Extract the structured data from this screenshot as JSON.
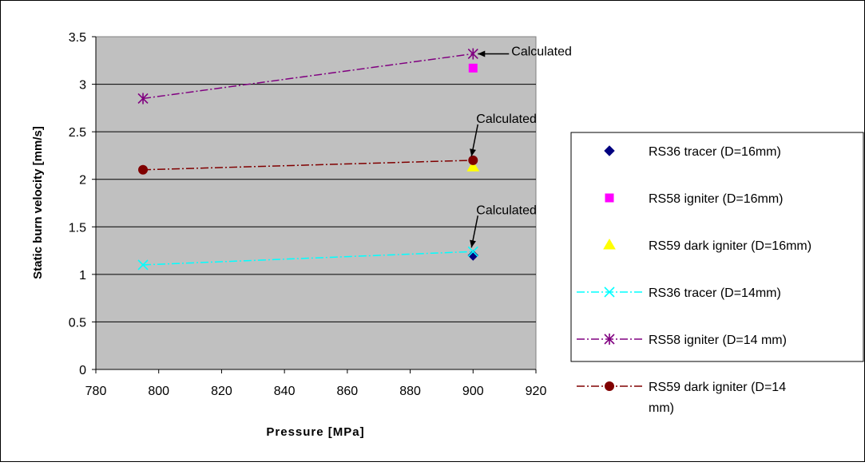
{
  "chart_data": {
    "type": "scatter",
    "title": "",
    "xlabel": "Pressure [MPa]",
    "ylabel": "Static burn velocity [mm/s]",
    "xlim": [
      780,
      920
    ],
    "ylim": [
      0,
      3.5
    ],
    "xticks": [
      780,
      800,
      820,
      840,
      860,
      880,
      900,
      920
    ],
    "yticks": [
      0,
      0.5,
      1,
      1.5,
      2,
      2.5,
      3,
      3.5
    ],
    "grid": "horizontal",
    "plot_background": "#c0c0c0",
    "legend_position": "right",
    "series": [
      {
        "name": "RS36 tracer (D=16mm)",
        "marker": "diamond",
        "line": "none",
        "color": "#000080",
        "x": [
          900
        ],
        "y": [
          1.2
        ]
      },
      {
        "name": "RS58 igniter (D=16mm)",
        "marker": "square",
        "line": "none",
        "color": "#ff00ff",
        "x": [
          900
        ],
        "y": [
          3.17
        ]
      },
      {
        "name": "RS59 dark igniter (D=16mm)",
        "marker": "triangle",
        "line": "none",
        "color": "#ffff00",
        "x": [
          900
        ],
        "y": [
          2.13
        ]
      },
      {
        "name": "RS36 tracer (D=14mm)",
        "marker": "x",
        "line": "dash-dot",
        "color": "#00ffff",
        "x": [
          795,
          900
        ],
        "y": [
          1.1,
          1.24
        ]
      },
      {
        "name": "RS58 igniter (D=14 mm)",
        "marker": "star",
        "line": "dash-dot",
        "color": "#800080",
        "x": [
          795,
          900
        ],
        "y": [
          2.85,
          3.32
        ]
      },
      {
        "name": "RS59 dark igniter (D=14 mm)",
        "marker": "circle",
        "line": "dash-dot",
        "color": "#800000",
        "x": [
          795,
          900
        ],
        "y": [
          2.1,
          2.2
        ]
      }
    ],
    "annotations": [
      {
        "text": "Calculated",
        "target_x": 900,
        "target_y": 3.32,
        "direction": "right"
      },
      {
        "text": "Calculated",
        "target_x": 900,
        "target_y": 2.2,
        "direction": "above"
      },
      {
        "text": "Calculated",
        "target_x": 900,
        "target_y": 1.24,
        "direction": "above"
      }
    ]
  }
}
